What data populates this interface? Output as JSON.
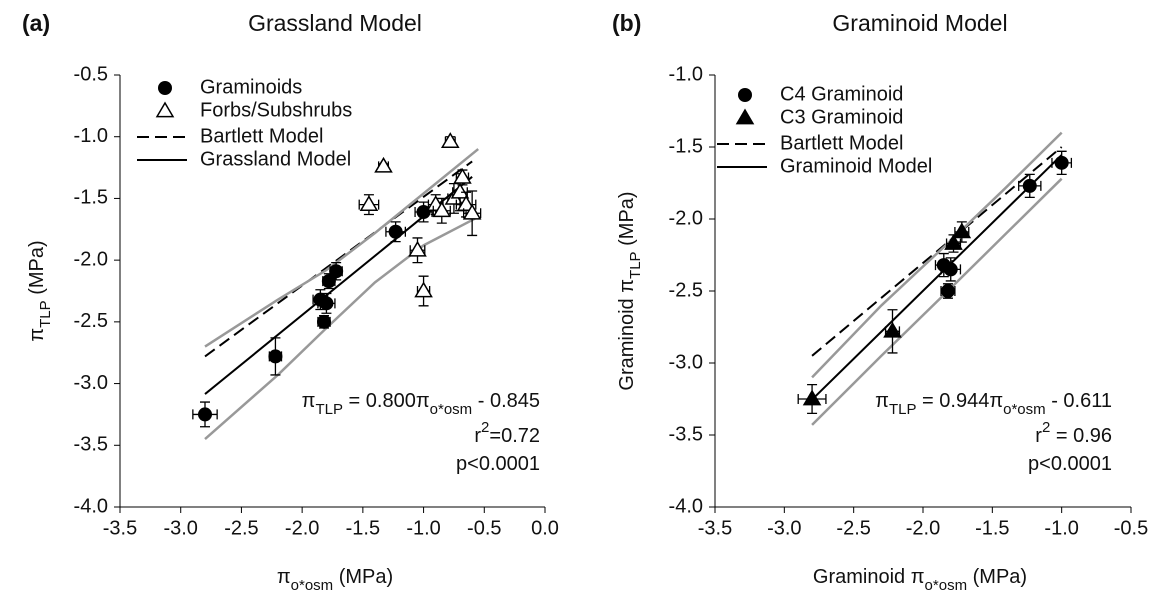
{
  "chart_data": [
    {
      "type": "scatter",
      "panel_label": "(a)",
      "title": "Grassland Model",
      "x_label": [
        {
          "text": "π"
        },
        {
          "text": "o*osm",
          "sub": true
        },
        {
          "text": " (MPa)"
        }
      ],
      "y_label": [
        {
          "text": "π"
        },
        {
          "text": "TLP",
          "sub": true
        },
        {
          "text": " (MPa)"
        }
      ],
      "xlim": [
        -3.5,
        0
      ],
      "ylim": [
        -4,
        -0.5
      ],
      "xticks": [
        -3.5,
        {
          "value": -3,
          "label": "-3.0"
        },
        -2.5,
        {
          "value": -2,
          "label": "-2.0"
        },
        -1.5,
        {
          "value": -1,
          "label": "-1.0"
        },
        -0.5,
        {
          "value": 0,
          "label": "0.0"
        }
      ],
      "yticks": [
        -0.5,
        {
          "value": -1,
          "label": "-1.0"
        },
        -1.5,
        {
          "value": -2,
          "label": "-2.0"
        },
        -2.5,
        {
          "value": -3,
          "label": "-3.0"
        },
        -3.5,
        {
          "value": -4,
          "label": "-4.0"
        }
      ],
      "grid": false,
      "series": [
        {
          "name": "Graminoids",
          "marker": "circle",
          "color": "#000000",
          "x": [
            -2.8,
            -2.22,
            -1.85,
            -1.82,
            -1.8,
            -1.78,
            -1.72,
            -1.23,
            -1.0
          ],
          "y": [
            -3.25,
            -2.78,
            -2.32,
            -2.5,
            -2.35,
            -2.17,
            -2.09,
            -1.77,
            -1.61
          ],
          "xerr": [
            0.1,
            0.05,
            0.06,
            0.05,
            0.07,
            0.05,
            0.05,
            0.08,
            0.07
          ],
          "yerr": [
            0.1,
            0.15,
            0.08,
            0.05,
            0.08,
            0.06,
            0.07,
            0.08,
            0.08
          ]
        },
        {
          "name": "Forbs/Subshrubs",
          "marker": "triangle-open",
          "color": "#000000",
          "x": [
            -1.33,
            -1.45,
            -1.05,
            -1.0,
            -0.9,
            -0.85,
            -0.78,
            -0.75,
            -0.7,
            -0.68,
            -0.65,
            -0.6
          ],
          "y": [
            -1.24,
            -1.55,
            -1.92,
            -2.25,
            -1.55,
            -1.6,
            -1.04,
            -1.5,
            -1.45,
            -1.33,
            -1.55,
            -1.62
          ],
          "xerr": [
            0.04,
            0.08,
            0.06,
            0.05,
            0.06,
            0.07,
            0.04,
            0.05,
            0.06,
            0.05,
            0.08,
            0.07
          ],
          "yerr": [
            0.02,
            0.08,
            0.1,
            0.12,
            0.08,
            0.1,
            0.04,
            0.12,
            0.15,
            0.06,
            0.1,
            0.18
          ]
        },
        {
          "name": "Bartlett Model",
          "marker": "dashed",
          "color": "#000000",
          "x": [
            -2.8,
            -0.6
          ],
          "y": [
            -2.78,
            -1.2
          ]
        },
        {
          "name": "Grassland Model",
          "marker": "solid",
          "color": "#000000",
          "x": [
            -2.8,
            -0.6
          ],
          "y": [
            -3.085,
            -1.325
          ]
        },
        {
          "marker": "band",
          "color": "#999999",
          "x": [
            -2.8,
            -2.2,
            -1.8,
            -1.4,
            -1.0,
            -0.55
          ],
          "y": [
            -2.7,
            -2.32,
            -2.08,
            -1.78,
            -1.46,
            -1.1
          ]
        },
        {
          "marker": "band",
          "color": "#999999",
          "x": [
            -2.8,
            -2.2,
            -1.8,
            -1.4,
            -1.0,
            -0.55
          ],
          "y": [
            -3.45,
            -2.93,
            -2.55,
            -2.18,
            -1.88,
            -1.65
          ]
        }
      ],
      "annotation": [
        [
          {
            "text": "π"
          },
          {
            "text": "TLP",
            "sub": true
          },
          {
            "text": " = 0.800π"
          },
          {
            "text": "o*osm",
            "sub": true
          },
          {
            "text": " - 0.845"
          }
        ],
        [
          {
            "text": "r"
          },
          {
            "text": "2",
            "sup": true
          },
          {
            "text": "=0.72"
          }
        ],
        [
          {
            "text": "p<0.0001"
          }
        ]
      ]
    },
    {
      "type": "scatter",
      "panel_label": "(b)",
      "title": "Graminoid Model",
      "x_label": [
        {
          "text": "Graminoid π"
        },
        {
          "text": "o*osm",
          "sub": true
        },
        {
          "text": " (MPa)"
        }
      ],
      "y_label": [
        {
          "text": "Graminoid π"
        },
        {
          "text": "TLP",
          "sub": true
        },
        {
          "text": " (MPa)"
        }
      ],
      "xlim": [
        -3.5,
        -0.5
      ],
      "ylim": [
        -4,
        -1
      ],
      "xticks": [
        -3.5,
        {
          "value": -3,
          "label": "-3.0"
        },
        -2.5,
        {
          "value": -2,
          "label": "-2.0"
        },
        -1.5,
        {
          "value": -1,
          "label": "-1.0"
        },
        -0.5
      ],
      "yticks": [
        {
          "value": -1,
          "label": "-1.0"
        },
        -1.5,
        {
          "value": -2,
          "label": "-2.0"
        },
        -2.5,
        {
          "value": -3,
          "label": "-3.0"
        },
        -3.5,
        {
          "value": -4,
          "label": "-4.0"
        }
      ],
      "grid": false,
      "series": [
        {
          "name": "C4 Graminoid",
          "marker": "circle",
          "color": "#000000",
          "x": [
            -1.82,
            -1.85,
            -1.8,
            -1.23,
            -1.0
          ],
          "y": [
            -2.5,
            -2.32,
            -2.35,
            -1.77,
            -1.61
          ],
          "xerr": [
            0.05,
            0.06,
            0.07,
            0.08,
            0.07
          ],
          "yerr": [
            0.05,
            0.08,
            0.08,
            0.08,
            0.08
          ]
        },
        {
          "name": "C3 Graminoid",
          "marker": "triangle",
          "color": "#000000",
          "x": [
            -2.8,
            -2.22,
            -1.78,
            -1.72
          ],
          "y": [
            -3.25,
            -2.78,
            -2.17,
            -2.09
          ],
          "xerr": [
            0.1,
            0.05,
            0.05,
            0.05
          ],
          "yerr": [
            0.1,
            0.15,
            0.06,
            0.07
          ]
        },
        {
          "name": "Bartlett Model",
          "marker": "dashed",
          "color": "#000000",
          "x": [
            -2.8,
            -1.0
          ],
          "y": [
            -2.95,
            -1.5
          ]
        },
        {
          "name": "Graminoid Model",
          "marker": "solid",
          "color": "#000000",
          "x": [
            -2.8,
            -1.0
          ],
          "y": [
            -3.254,
            -1.555
          ]
        },
        {
          "marker": "band",
          "color": "#999999",
          "x": [
            -2.8,
            -2.3,
            -1.8,
            -1.4,
            -1.0
          ],
          "y": [
            -3.1,
            -2.6,
            -2.15,
            -1.78,
            -1.4
          ]
        },
        {
          "marker": "band",
          "color": "#999999",
          "x": [
            -2.8,
            -2.3,
            -1.8,
            -1.4,
            -1.0
          ],
          "y": [
            -3.43,
            -2.95,
            -2.48,
            -2.1,
            -1.72
          ]
        }
      ],
      "annotation": [
        [
          {
            "text": "π"
          },
          {
            "text": "TLP",
            "sub": true
          },
          {
            "text": " = 0.944π"
          },
          {
            "text": "o*osm",
            "sub": true
          },
          {
            "text": " - 0.611"
          }
        ],
        [
          {
            "text": "r"
          },
          {
            "text": "2",
            "sup": true
          },
          {
            "text": " = 0.96"
          }
        ],
        [
          {
            "text": "p<0.0001"
          }
        ]
      ]
    }
  ]
}
